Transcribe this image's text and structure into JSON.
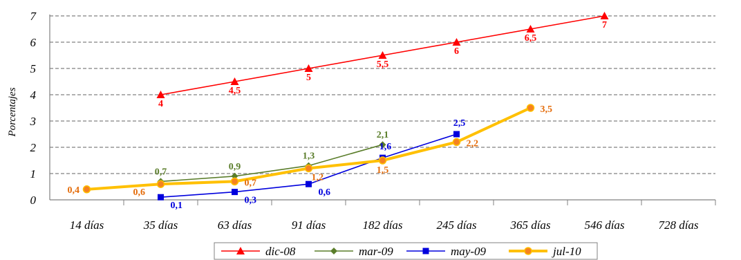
{
  "chart_data": {
    "type": "line",
    "categories": [
      "14 días",
      "35 días",
      "63 días",
      "91 días",
      "182 días",
      "245 días",
      "365 días",
      "546 días",
      "728 días"
    ],
    "ylabel": "Porcentajes",
    "xlabel": "",
    "title": "",
    "ylim": [
      0,
      7
    ],
    "yticks": [
      "0",
      "1",
      "2",
      "3",
      "4",
      "5",
      "6",
      "7"
    ],
    "grid": "horizontal dashed",
    "legend_position": "bottom",
    "series": [
      {
        "name": "dic-08",
        "color": "#ff0000",
        "marker": "triangle",
        "values": [
          null,
          4,
          4.5,
          5,
          5.5,
          6,
          6.5,
          7,
          null
        ],
        "labels": [
          null,
          "4",
          "4,5",
          "5",
          "5,5",
          "6",
          "6,5",
          "7",
          null
        ]
      },
      {
        "name": "mar-09",
        "color": "#5a7d2a",
        "marker": "diamond",
        "values": [
          null,
          0.7,
          0.9,
          1.3,
          2.1,
          null,
          null,
          null,
          null
        ],
        "labels": [
          null,
          "0,7",
          "0,9",
          "1,3",
          "2,1",
          null,
          null,
          null,
          null
        ]
      },
      {
        "name": "may-09",
        "color": "#0000dd",
        "marker": "square",
        "values": [
          null,
          0.1,
          0.3,
          0.6,
          1.6,
          2.5,
          null,
          null,
          null
        ],
        "labels": [
          null,
          "0,1",
          "0,3",
          "0,6",
          "1,6",
          "2,5",
          null,
          null,
          null
        ]
      },
      {
        "name": "jul-10",
        "color": "#ffc000",
        "marker_fill": "#f58220",
        "label_color": "#e46c0a",
        "marker": "circle",
        "values": [
          0.4,
          0.6,
          0.7,
          1.2,
          1.5,
          2.2,
          3.5,
          null,
          null
        ],
        "labels": [
          "0,4",
          "0,6",
          "0,7",
          "1,2",
          "1,5",
          "2,2",
          "3,5",
          null,
          null
        ]
      }
    ]
  }
}
